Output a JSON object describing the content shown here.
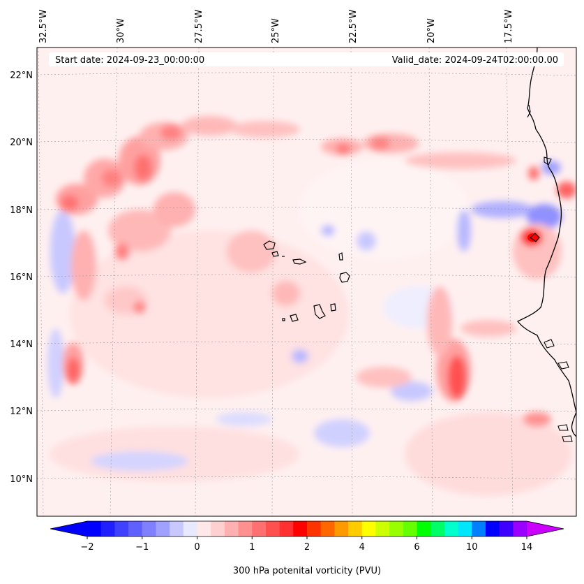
{
  "map": {
    "header": {
      "start_date": "Start date: 2024-09-23_00:00:00",
      "valid_date": "Valid_date: 2024-09-24T02:00:00.00"
    },
    "longitude_labels": [
      "32.5°W",
      "30°W",
      "27.5°W",
      "25°W",
      "22.5°W",
      "20°W",
      "17.5°W"
    ],
    "latitude_labels": [
      "22°N",
      "20°N",
      "18°N",
      "16°N",
      "14°N",
      "12°N",
      "10°N"
    ],
    "extent": {
      "lon": [
        -33,
        -15
      ],
      "lat": [
        9,
        22.8
      ]
    },
    "features": [
      "coastline-africa",
      "cape-verde-islands"
    ]
  },
  "colorbar": {
    "label": "300 hPa potenital vorticity (PVU)",
    "tick_labels": [
      "−2",
      "−1",
      "0",
      "1",
      "2",
      "4",
      "6",
      "10",
      "14"
    ],
    "colors": [
      "#0000ff",
      "#2020ff",
      "#4040ff",
      "#6060ff",
      "#8080ff",
      "#a0a0ff",
      "#c8c8ff",
      "#e8e8ff",
      "#ffe8e8",
      "#ffd0d0",
      "#ffb0b0",
      "#ff9090",
      "#ff7070",
      "#ff5050",
      "#ff3030",
      "#ff0000",
      "#ff3300",
      "#ff6600",
      "#ff9900",
      "#ffcc00",
      "#ffff00",
      "#ccff00",
      "#99ff00",
      "#66ff00",
      "#00ff00",
      "#00ff66",
      "#00ffcc",
      "#00e6ff",
      "#0080ff",
      "#0000ff",
      "#4000ff",
      "#9900ff"
    ],
    "under_color": "#0000ff",
    "over_color": "#cc00ff"
  }
}
